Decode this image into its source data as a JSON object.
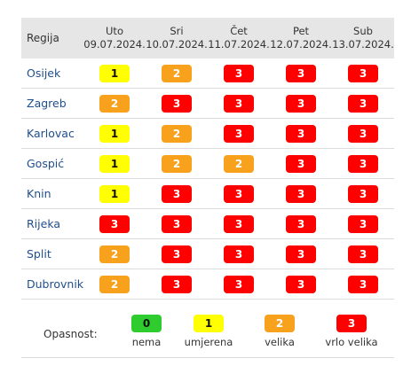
{
  "table": {
    "region_header": "Regija",
    "days": [
      {
        "day": "Uto",
        "date": "09.07.2024."
      },
      {
        "day": "Sri",
        "date": "10.07.2024."
      },
      {
        "day": "Čet",
        "date": "11.07.2024."
      },
      {
        "day": "Pet",
        "date": "12.07.2024."
      },
      {
        "day": "Sub",
        "date": "13.07.2024."
      }
    ],
    "rows": [
      {
        "region": "Osijek",
        "levels": [
          "1",
          "2",
          "3",
          "3",
          "3"
        ]
      },
      {
        "region": "Zagreb",
        "levels": [
          "2",
          "3",
          "3",
          "3",
          "3"
        ]
      },
      {
        "region": "Karlovac",
        "levels": [
          "1",
          "2",
          "3",
          "3",
          "3"
        ]
      },
      {
        "region": "Gospić",
        "levels": [
          "1",
          "2",
          "2",
          "3",
          "3"
        ]
      },
      {
        "region": "Knin",
        "levels": [
          "1",
          "3",
          "3",
          "3",
          "3"
        ]
      },
      {
        "region": "Rijeka",
        "levels": [
          "3",
          "3",
          "3",
          "3",
          "3"
        ]
      },
      {
        "region": "Split",
        "levels": [
          "2",
          "3",
          "3",
          "3",
          "3"
        ]
      },
      {
        "region": "Dubrovnik",
        "levels": [
          "2",
          "3",
          "3",
          "3",
          "3"
        ]
      }
    ]
  },
  "legend": {
    "label": "Opasnost:",
    "items": [
      {
        "value": "0",
        "caption": "nema"
      },
      {
        "value": "1",
        "caption": "umjerena"
      },
      {
        "value": "2",
        "caption": "velika"
      },
      {
        "value": "3",
        "caption": "vrlo velika"
      }
    ]
  },
  "colors": {
    "level_0": "#2ecc2e",
    "level_1": "#ffff00",
    "level_2": "#f7a11c",
    "level_3": "#ff0000",
    "header_bg": "#e6e6e6",
    "region_link": "#1f4e8c"
  }
}
